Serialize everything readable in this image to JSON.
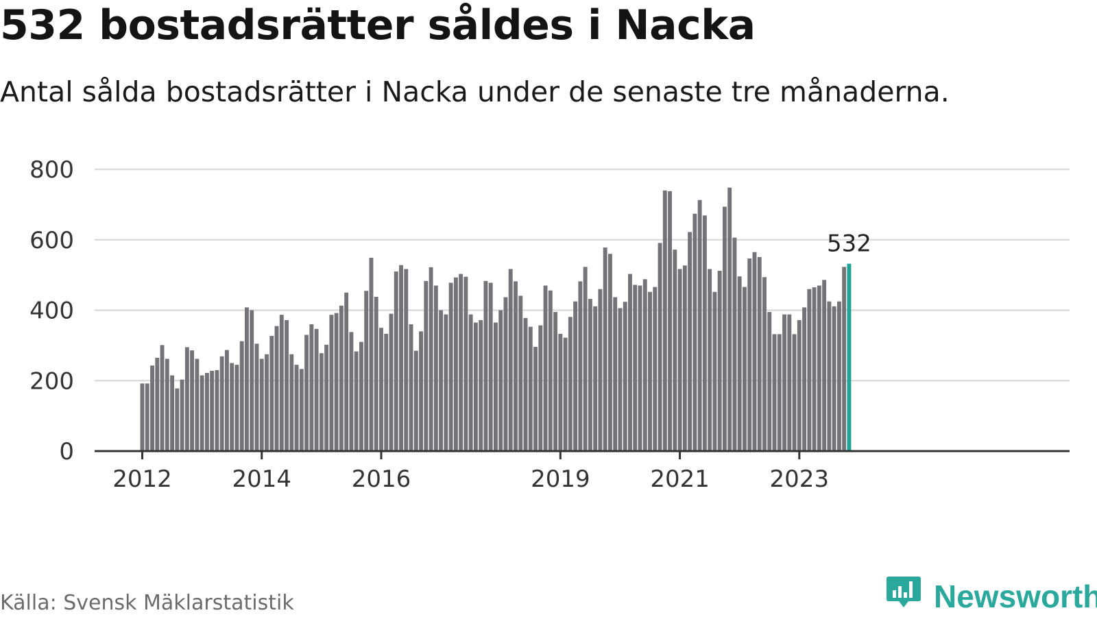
{
  "header": {
    "title": "532 bostadsrätter såldes i Nacka",
    "subtitle": "Antal sålda bostadsrätter i Nacka under de senaste tre månaderna."
  },
  "footer": {
    "source": "Källa: Svensk Mäklarstatistik",
    "brand": "Newsworthy",
    "logo_icon": "bar-chart-speech-bubble-icon"
  },
  "colors": {
    "bar": "#747378",
    "highlight": "#1fa396",
    "grid": "#dcdcdc",
    "axis": "#333333",
    "brand": "#2aa89c"
  },
  "chart_data": {
    "type": "bar",
    "title": "532 bostadsrätter såldes i Nacka",
    "subtitle": "Antal sålda bostadsrätter i Nacka under de senaste tre månaderna.",
    "xlabel": "",
    "ylabel": "",
    "ylim": [
      0,
      800
    ],
    "yticks": [
      0,
      200,
      400,
      600,
      800
    ],
    "grid": true,
    "start": "2012-01",
    "xticks": [
      {
        "label": "2012",
        "index": 0
      },
      {
        "label": "2014",
        "index": 24
      },
      {
        "label": "2016",
        "index": 48
      },
      {
        "label": "2019",
        "index": 84
      },
      {
        "label": "2021",
        "index": 108
      },
      {
        "label": "2023",
        "index": 132
      }
    ],
    "highlight_label": "532",
    "values": [
      192,
      192,
      243,
      265,
      301,
      262,
      215,
      178,
      203,
      295,
      286,
      262,
      215,
      222,
      228,
      230,
      269,
      287,
      250,
      245,
      312,
      408,
      400,
      305,
      262,
      275,
      327,
      355,
      387,
      372,
      275,
      245,
      233,
      330,
      360,
      347,
      278,
      302,
      387,
      392,
      413,
      450,
      338,
      283,
      310,
      455,
      549,
      438,
      350,
      333,
      390,
      510,
      528,
      517,
      360,
      285,
      340,
      483,
      522,
      470,
      400,
      388,
      478,
      493,
      503,
      495,
      388,
      365,
      372,
      483,
      478,
      365,
      400,
      437,
      517,
      482,
      441,
      378,
      353,
      296,
      357,
      470,
      456,
      395,
      333,
      322,
      381,
      425,
      482,
      523,
      432,
      411,
      460,
      578,
      560,
      437,
      406,
      424,
      503,
      472,
      470,
      488,
      452,
      466,
      591,
      740,
      738,
      572,
      517,
      527,
      622,
      674,
      713,
      669,
      517,
      452,
      512,
      694,
      748,
      606,
      496,
      466,
      547,
      565,
      551,
      494,
      395,
      332,
      332,
      388,
      388,
      332,
      372,
      408,
      460,
      465,
      470,
      486,
      425,
      411,
      425,
      523,
      532
    ]
  }
}
